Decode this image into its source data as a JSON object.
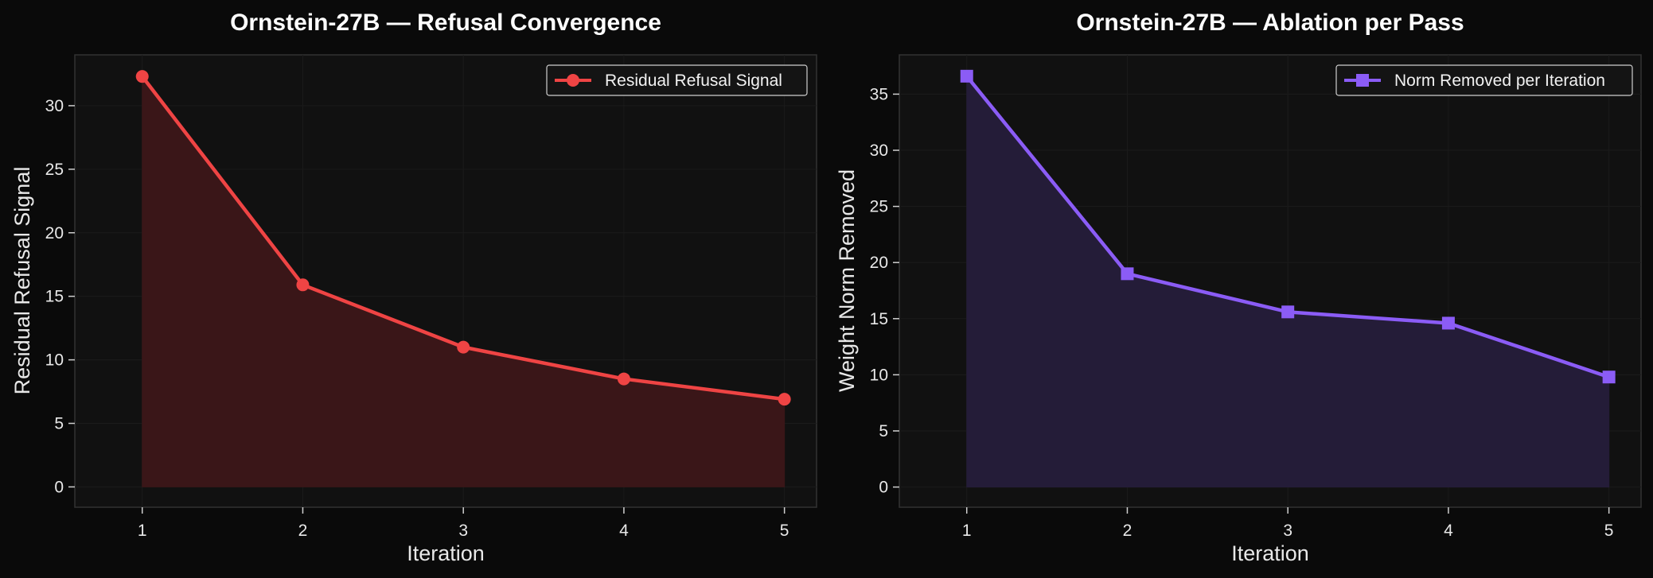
{
  "chart_data": [
    {
      "type": "line",
      "title": "Ornstein-27B — Refusal Convergence",
      "xlabel": "Iteration",
      "ylabel": "Residual Refusal Signal",
      "x": [
        1,
        2,
        3,
        4,
        5
      ],
      "x_ticks": [
        "1",
        "2",
        "3",
        "4",
        "5"
      ],
      "xlim": [
        0.58,
        5.2
      ],
      "ylim": [
        -1.6,
        34.0
      ],
      "y_ticks": [
        0,
        5,
        10,
        15,
        20,
        25,
        30
      ],
      "series": [
        {
          "name": "Residual Refusal Signal",
          "values": [
            32.3,
            15.9,
            11.0,
            8.5,
            6.9
          ],
          "color": "#ef4444",
          "fill_color": "#3a1618",
          "marker": "circle"
        }
      ],
      "grid": true,
      "area_fill": true,
      "legend": "top-right"
    },
    {
      "type": "line",
      "title": "Ornstein-27B — Ablation per Pass",
      "xlabel": "Iteration",
      "ylabel": "Weight Norm Removed",
      "x": [
        1,
        2,
        3,
        4,
        5
      ],
      "x_ticks": [
        "1",
        "2",
        "3",
        "4",
        "5"
      ],
      "xlim": [
        0.58,
        5.2
      ],
      "ylim": [
        -1.8,
        38.5
      ],
      "y_ticks": [
        0,
        5,
        10,
        15,
        20,
        25,
        30,
        35
      ],
      "series": [
        {
          "name": "Norm Removed per Iteration",
          "values": [
            36.6,
            19.0,
            15.6,
            14.6,
            9.8
          ],
          "color": "#8b5cf6",
          "fill_color": "#241c38",
          "marker": "square"
        }
      ],
      "grid": true,
      "area_fill": true,
      "legend": "top-right"
    }
  ]
}
